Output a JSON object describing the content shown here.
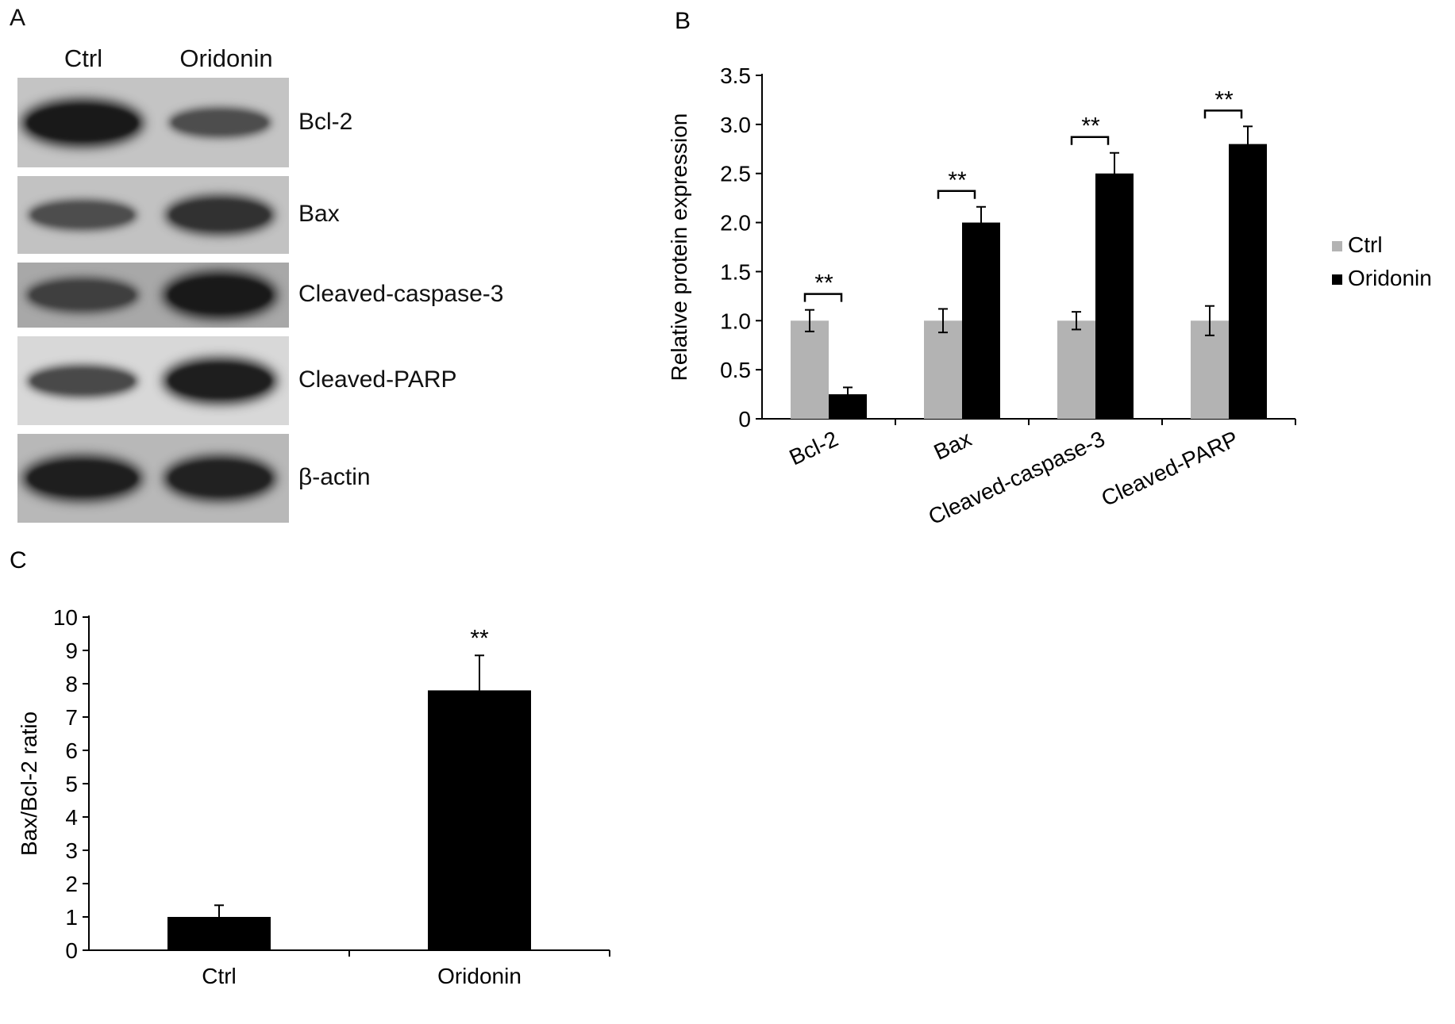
{
  "panels": {
    "a_letter": "A",
    "b_letter": "B",
    "c_letter": "C"
  },
  "blot": {
    "lanes": [
      "Ctrl",
      "Oridonin"
    ],
    "rows": [
      {
        "label": "Bcl-2",
        "bg": "#c4c4c4",
        "intensity": [
          1.0,
          0.45
        ]
      },
      {
        "label": "Bax",
        "bg": "#c2c2c2",
        "intensity": [
          0.45,
          0.75
        ]
      },
      {
        "label": "Cleaved-caspase-3",
        "bg": "#a8a8a8",
        "intensity": [
          0.6,
          1.0
        ]
      },
      {
        "label": "Cleaved-PARP",
        "bg": "#d8d8d8",
        "intensity": [
          0.5,
          0.95
        ]
      },
      {
        "label": "β-actin",
        "bg": "#b8b8b8",
        "intensity": [
          0.95,
          0.92
        ]
      }
    ]
  },
  "chart_data": [
    {
      "id": "B",
      "type": "bar",
      "categories": [
        "Bcl-2",
        "Bax",
        "Cleaved-caspase-3",
        "Cleaved-PARP"
      ],
      "series": [
        {
          "name": "Ctrl",
          "color": "#b3b3b3",
          "values": [
            1.0,
            1.0,
            1.0,
            1.0
          ],
          "errors": [
            0.11,
            0.12,
            0.09,
            0.15
          ]
        },
        {
          "name": "Oridonin",
          "color": "#000000",
          "values": [
            0.25,
            2.0,
            2.5,
            2.8
          ],
          "errors": [
            0.07,
            0.16,
            0.21,
            0.18
          ]
        }
      ],
      "significance": [
        "**",
        "**",
        "**",
        "**"
      ],
      "ylabel": "Relative protein expression",
      "xlabel": "",
      "ylim": [
        0,
        3.5
      ],
      "yticks": [
        "0",
        "0.5",
        "1.0",
        "1.5",
        "2.0",
        "2.5",
        "3.0",
        "3.5"
      ],
      "legend": "right",
      "grid": false
    },
    {
      "id": "C",
      "type": "bar",
      "categories": [
        "Ctrl",
        "Oridonin"
      ],
      "values": [
        1.0,
        7.8
      ],
      "errors": [
        0.35,
        1.05
      ],
      "color": "#000000",
      "significance": [
        "",
        "**"
      ],
      "ylabel": "Bax/Bcl-2 ratio",
      "xlabel": "",
      "ylim": [
        0,
        10
      ],
      "yticks": [
        "0",
        "1",
        "2",
        "3",
        "4",
        "5",
        "6",
        "7",
        "8",
        "9",
        "10"
      ],
      "grid": false
    }
  ]
}
